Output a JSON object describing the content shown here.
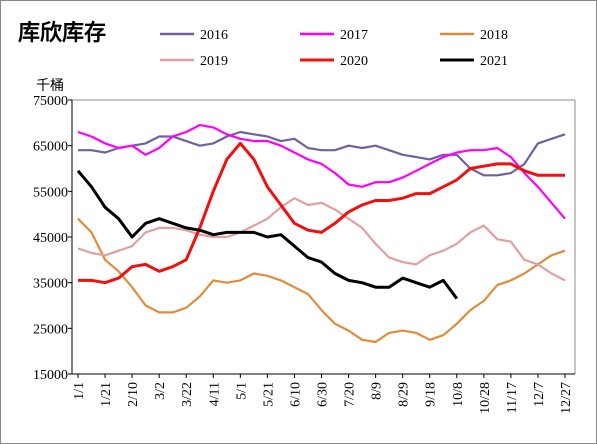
{
  "chart_data": {
    "type": "line",
    "title": "库欣库存",
    "ylabel": "千桶",
    "categories": [
      "1/1",
      null,
      "1/21",
      null,
      "2/10",
      null,
      "3/2",
      null,
      "3/22",
      null,
      "4/11",
      null,
      "5/1",
      null,
      "5/21",
      null,
      "6/10",
      null,
      "6/30",
      null,
      "7/20",
      null,
      "8/9",
      null,
      "8/29",
      null,
      "9/18",
      null,
      "10/8",
      null,
      "10/28",
      null,
      "11/17",
      null,
      "12/7",
      null,
      "12/27"
    ],
    "ylim": [
      15000,
      75000
    ],
    "yticks": [
      15000,
      25000,
      35000,
      45000,
      55000,
      65000,
      75000
    ],
    "grid": false,
    "series": [
      {
        "name": "2016",
        "color": "#7060a0",
        "values": [
          64000,
          64000,
          63500,
          64500,
          65000,
          65500,
          67000,
          67000,
          66000,
          65000,
          65500,
          67000,
          68000,
          67500,
          67000,
          66000,
          66500,
          64500,
          64000,
          64000,
          65000,
          64500,
          65000,
          64000,
          63000,
          62500,
          62000,
          63000,
          63000,
          60000,
          58500,
          58500,
          59000,
          61000,
          65500,
          66500,
          67500
        ]
      },
      {
        "name": "2017",
        "color": "#ff00ff",
        "values": [
          68000,
          67000,
          65500,
          64500,
          65000,
          63000,
          64500,
          67000,
          68000,
          69500,
          69000,
          67500,
          66500,
          66000,
          66000,
          65000,
          63500,
          62000,
          61000,
          59000,
          56500,
          56000,
          57000,
          57000,
          58000,
          59500,
          61000,
          62500,
          63500,
          64000,
          64000,
          64500,
          62500,
          59000,
          56000,
          52500,
          49000
        ]
      },
      {
        "name": "2018",
        "color": "#e08c3c",
        "values": [
          49000,
          46000,
          40000,
          37500,
          34000,
          30000,
          28500,
          28500,
          29500,
          32000,
          35500,
          35000,
          35500,
          37000,
          36500,
          35500,
          34000,
          32500,
          29000,
          26000,
          24500,
          22500,
          22000,
          24000,
          24500,
          24000,
          22500,
          23500,
          26000,
          29000,
          31000,
          34500,
          35500,
          37000,
          39000,
          41000,
          42000
        ]
      },
      {
        "name": "2019",
        "color": "#e0a0a0",
        "values": [
          42500,
          41500,
          41000,
          42000,
          43000,
          46000,
          47000,
          47000,
          46500,
          45500,
          45000,
          45000,
          46000,
          47500,
          49000,
          51500,
          53500,
          52000,
          52500,
          51000,
          49000,
          47000,
          43500,
          40500,
          39500,
          39000,
          41000,
          42000,
          43500,
          46000,
          47500,
          44500,
          44000,
          40000,
          39000,
          37000,
          35500
        ]
      },
      {
        "name": "2020",
        "color": "#ee1111",
        "values": [
          35500,
          35500,
          35000,
          36000,
          38500,
          39000,
          37500,
          38500,
          40000,
          47000,
          55000,
          62000,
          65500,
          62000,
          56000,
          52000,
          48000,
          46500,
          46000,
          48000,
          50500,
          52000,
          53000,
          53000,
          53500,
          54500,
          54500,
          56000,
          57500,
          60000,
          60500,
          61000,
          61000,
          59500,
          58500,
          58500,
          58500
        ]
      },
      {
        "name": "2021",
        "color": "#000000",
        "values": [
          59500,
          56000,
          51500,
          49000,
          45000,
          48000,
          49000,
          48000,
          47000,
          46500,
          45500,
          46000,
          46000,
          46000,
          45000,
          45500,
          43000,
          40500,
          39500,
          37000,
          35500,
          35000,
          34000,
          34000,
          36000,
          35000,
          34000,
          35500,
          31500,
          null,
          null,
          null,
          null,
          null,
          null,
          null,
          null
        ]
      }
    ]
  }
}
